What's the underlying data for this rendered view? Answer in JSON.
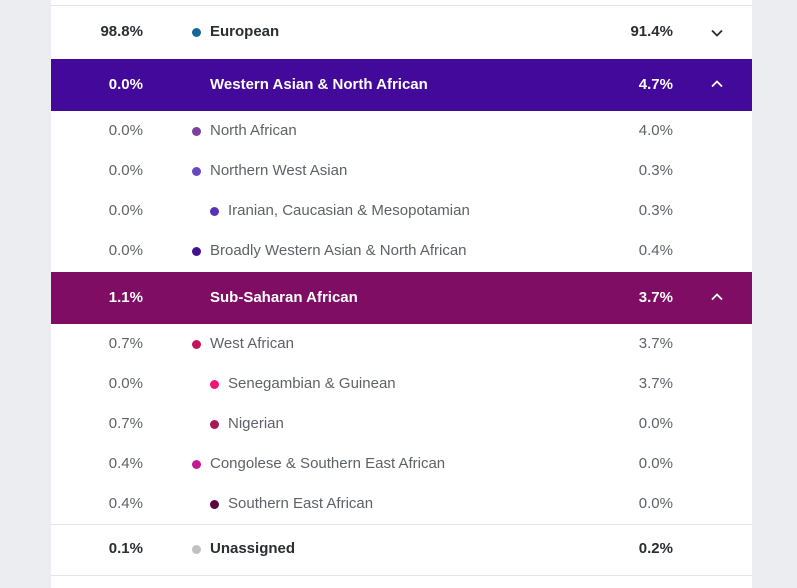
{
  "rows": [
    {
      "type": "parent",
      "left": "98.8%",
      "label": "European",
      "right": "91.4%",
      "dot": "#17669b",
      "chevron": "down"
    },
    {
      "type": "header",
      "left": "0.0%",
      "label": "Western Asian & North African",
      "right": "4.7%",
      "bg": "#42099a",
      "chevron": "up"
    },
    {
      "type": "child",
      "left": "0.0%",
      "label": "North African",
      "right": "4.0%",
      "dot": "#7d3e9f",
      "indent": 0
    },
    {
      "type": "child",
      "left": "0.0%",
      "label": "Northern West Asian",
      "right": "0.3%",
      "dot": "#6a47c2",
      "indent": 0
    },
    {
      "type": "child",
      "left": "0.0%",
      "label": "Iranian, Caucasian & Mesopotamian",
      "right": "0.3%",
      "dot": "#5731b8",
      "indent": 1
    },
    {
      "type": "child",
      "left": "0.0%",
      "label": "Broadly Western Asian & North African",
      "right": "0.4%",
      "dot": "#3e1290",
      "indent": 0
    },
    {
      "type": "header",
      "left": "1.1%",
      "label": "Sub-Saharan African",
      "right": "3.7%",
      "bg": "#7f0d63",
      "chevron": "up"
    },
    {
      "type": "child",
      "left": "0.7%",
      "label": "West African",
      "right": "3.7%",
      "dot": "#c3155b",
      "indent": 0
    },
    {
      "type": "child",
      "left": "0.0%",
      "label": "Senegambian & Guinean",
      "right": "3.7%",
      "dot": "#ee1775",
      "indent": 1
    },
    {
      "type": "child",
      "left": "0.7%",
      "label": "Nigerian",
      "right": "0.0%",
      "dot": "#a5185a",
      "indent": 1
    },
    {
      "type": "child",
      "left": "0.4%",
      "label": "Congolese & Southern East African",
      "right": "0.0%",
      "dot": "#c41895",
      "indent": 0
    },
    {
      "type": "child",
      "left": "0.4%",
      "label": "Southern East African",
      "right": "0.0%",
      "dot": "#5a0a3d",
      "indent": 1
    },
    {
      "type": "parent",
      "left": "0.1%",
      "label": "Unassigned",
      "right": "0.2%",
      "dot": "#c0c0c0",
      "chevron": ""
    }
  ]
}
